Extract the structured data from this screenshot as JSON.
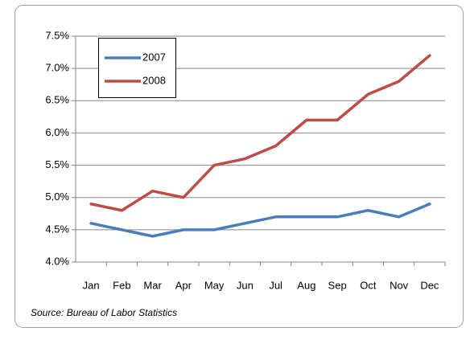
{
  "chart_data": {
    "type": "line",
    "categories": [
      "Jan",
      "Feb",
      "Mar",
      "Apr",
      "May",
      "Jun",
      "Jul",
      "Aug",
      "Sep",
      "Oct",
      "Nov",
      "Dec"
    ],
    "series": [
      {
        "name": "2007",
        "color": "#4a7ebb",
        "values": [
          4.6,
          4.5,
          4.4,
          4.5,
          4.5,
          4.6,
          4.7,
          4.7,
          4.7,
          4.8,
          4.7,
          4.9
        ]
      },
      {
        "name": "2008",
        "color": "#be4b48",
        "values": [
          4.9,
          4.8,
          5.1,
          5.0,
          5.5,
          5.6,
          5.8,
          6.2,
          6.2,
          6.6,
          6.8,
          7.2
        ]
      }
    ],
    "ylim": [
      4.0,
      7.5
    ],
    "yticks": [
      {
        "value": 4.0,
        "label": "4.0%"
      },
      {
        "value": 4.5,
        "label": "4.5%"
      },
      {
        "value": 5.0,
        "label": "5.0%"
      },
      {
        "value": 5.5,
        "label": "5.5%"
      },
      {
        "value": 6.0,
        "label": "6.0%"
      },
      {
        "value": 6.5,
        "label": "6.5%"
      },
      {
        "value": 7.0,
        "label": "7.0%"
      },
      {
        "value": 7.5,
        "label": "7.5%"
      }
    ],
    "grid": true,
    "legend": "upper-left",
    "source": "Source: Bureau of Labor Statistics"
  }
}
